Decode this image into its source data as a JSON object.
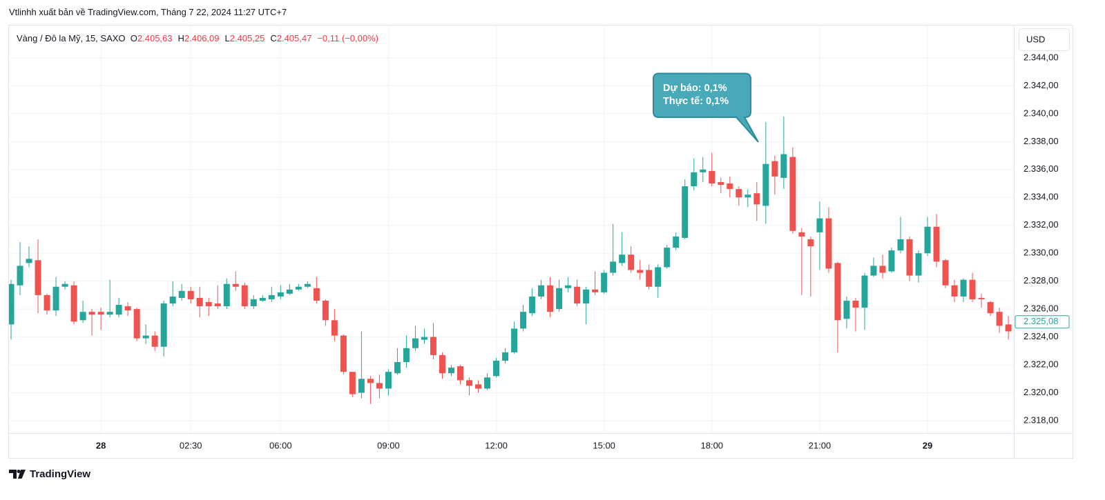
{
  "header": {
    "publisher": "Vtlinhh xuất bản về TradingView.com, Tháng 7 22, 2024 11:27 UTC+7",
    "symbol": "Vàng / Đô la Mỹ, 15, SAXO",
    "ohlc": [
      {
        "key": "O",
        "value": "2.405,63"
      },
      {
        "key": "H",
        "value": "2.406,09"
      },
      {
        "key": "L",
        "value": "2.405,25"
      },
      {
        "key": "C",
        "value": "2.405,47"
      }
    ],
    "change": "−0,11 (−0,00%)"
  },
  "currency": "USD",
  "brand": "TradingView",
  "chart_data": {
    "type": "candlestick",
    "categories": [
      null,
      null,
      null,
      null,
      null,
      null,
      null,
      null,
      null,
      null,
      "28",
      null,
      null,
      null,
      null,
      null,
      null,
      null,
      null,
      null,
      "02:30",
      null,
      null,
      null,
      null,
      null,
      null,
      null,
      null,
      null,
      "06:00",
      null,
      null,
      null,
      null,
      null,
      null,
      null,
      null,
      null,
      null,
      null,
      "09:00",
      null,
      null,
      null,
      null,
      null,
      null,
      null,
      null,
      null,
      null,
      null,
      "12:00",
      null,
      null,
      null,
      null,
      null,
      null,
      null,
      null,
      null,
      null,
      null,
      "15:00",
      null,
      null,
      null,
      null,
      null,
      null,
      null,
      null,
      null,
      null,
      null,
      "18:00",
      null,
      null,
      null,
      null,
      null,
      null,
      null,
      null,
      null,
      null,
      null,
      "21:00",
      null,
      null,
      null,
      null,
      null,
      null,
      null,
      null,
      null,
      null,
      null,
      "29",
      null,
      null,
      null,
      null,
      null,
      null,
      null,
      null,
      null
    ],
    "open": [
      2324.9,
      2327.7,
      2329.3,
      2329.5,
      2327.0,
      2325.9,
      2327.6,
      2327.7,
      2325.2,
      2325.8,
      2325.8,
      2325.6,
      2325.6,
      2326.2,
      2326.0,
      2323.9,
      2324.1,
      2323.3,
      2326.4,
      2326.8,
      2327.3,
      2326.8,
      2326.5,
      2326.4,
      2326.2,
      2327.8,
      2327.7,
      2326.2,
      2326.6,
      2326.7,
      2326.9,
      2327.1,
      2327.4,
      2327.6,
      2327.5,
      2326.6,
      2325.2,
      2324.1,
      2321.5,
      2320.0,
      2321.0,
      2320.7,
      2320.3,
      2321.4,
      2322.2,
      2323.2,
      2323.8,
      2324.0,
      2322.7,
      2321.4,
      2321.9,
      2320.9,
      2320.6,
      2320.3,
      2321.2,
      2322.3,
      2322.9,
      2324.6,
      2325.7,
      2326.9,
      2327.7,
      2326.0,
      2327.5,
      2327.6,
      2326.4,
      2327.4,
      2327.2,
      2328.6,
      2329.3,
      2329.9,
      2328.8,
      2328.8,
      2327.6,
      2329.0,
      2330.4,
      2331.1,
      2334.8,
      2335.8,
      2335.9,
      2335.1,
      2335.0,
      2334.6,
      2334.0,
      2334.3,
      2333.4,
      2336.6,
      2335.4,
      2336.9,
      2331.5,
      2331.0,
      2331.5,
      2332.5,
      2329.3,
      2325.3,
      2326.6,
      2326.1,
      2328.4,
      2329.1,
      2328.7,
      2330.2,
      2331.0,
      2328.4,
      2330.0,
      2331.9,
      2329.5,
      2327.7,
      2326.9,
      2328.1,
      2326.8,
      2326.5,
      2325.8,
      2324.9
    ],
    "high": [
      2328.1,
      2330.8,
      2330.5,
      2331.0,
      2327.1,
      2328.3,
      2328.0,
      2328.0,
      2326.6,
      2326.0,
      2326.1,
      2328.1,
      2326.8,
      2326.5,
      2326.1,
      2324.9,
      2324.4,
      2326.6,
      2328.0,
      2327.8,
      2327.6,
      2327.6,
      2326.8,
      2327.7,
      2328.2,
      2328.7,
      2327.9,
      2327.0,
      2327.0,
      2327.6,
      2327.7,
      2327.8,
      2327.8,
      2328.0,
      2328.3,
      2326.7,
      2326.0,
      2324.2,
      2321.5,
      2324.4,
      2321.2,
      2321.3,
      2321.7,
      2323.2,
      2324.1,
      2324.8,
      2324.6,
      2325.0,
      2322.9,
      2322.0,
      2322.0,
      2321.1,
      2320.9,
      2321.4,
      2322.5,
      2323.2,
      2325.1,
      2326.3,
      2327.5,
      2328.1,
      2328.3,
      2328.1,
      2328.3,
      2328.1,
      2327.6,
      2328.7,
      2328.8,
      2332.1,
      2331.5,
      2330.5,
      2329.5,
      2329.2,
      2329.2,
      2330.6,
      2331.5,
      2335.3,
      2336.8,
      2336.9,
      2337.2,
      2335.4,
      2335.5,
      2334.8,
      2334.6,
      2335.1,
      2339.4,
      2337.0,
      2339.8,
      2337.6,
      2331.8,
      2331.2,
      2333.7,
      2333.3,
      2329.4,
      2326.9,
      2326.8,
      2328.6,
      2329.7,
      2329.9,
      2330.4,
      2332.6,
      2331.2,
      2330.2,
      2332.6,
      2332.8,
      2329.6,
      2328.1,
      2328.2,
      2328.6,
      2327.1,
      2326.6,
      2326.1,
      2325.5
    ],
    "low": [
      2323.8,
      2327.0,
      2329.0,
      2325.7,
      2325.6,
      2325.5,
      2327.4,
      2324.9,
      2325.0,
      2324.1,
      2324.5,
      2325.4,
      2325.4,
      2325.5,
      2323.7,
      2323.5,
      2323.0,
      2322.6,
      2326.2,
      2326.6,
      2326.4,
      2325.4,
      2325.5,
      2326.0,
      2326.0,
      2327.3,
      2326.0,
      2326.0,
      2326.5,
      2326.5,
      2326.7,
      2327.0,
      2327.3,
      2327.5,
      2326.4,
      2324.8,
      2323.7,
      2321.3,
      2319.7,
      2319.6,
      2319.2,
      2319.6,
      2319.8,
      2321.3,
      2321.8,
      2323.0,
      2323.5,
      2322.4,
      2321.0,
      2321.2,
      2320.6,
      2319.8,
      2320.0,
      2320.2,
      2321.1,
      2322.1,
      2322.8,
      2324.4,
      2325.5,
      2326.7,
      2325.4,
      2325.8,
      2327.2,
      2326.2,
      2324.9,
      2327.0,
      2327.1,
      2328.4,
      2329.1,
      2328.6,
      2328.1,
      2327.4,
      2326.8,
      2328.9,
      2330.2,
      2331.0,
      2334.5,
      2335.1,
      2334.8,
      2334.3,
      2334.0,
      2333.4,
      2333.3,
      2332.3,
      2332.1,
      2334.2,
      2334.6,
      2331.4,
      2327.0,
      2326.9,
      2328.8,
      2328.6,
      2322.9,
      2324.6,
      2324.4,
      2324.5,
      2328.3,
      2328.2,
      2328.6,
      2330.0,
      2328.0,
      2327.9,
      2329.8,
      2329.0,
      2327.5,
      2326.5,
      2326.5,
      2326.5,
      2326.1,
      2325.5,
      2324.3,
      2323.8
    ],
    "close": [
      2327.8,
      2329.1,
      2329.6,
      2327.0,
      2325.9,
      2327.6,
      2327.8,
      2325.1,
      2325.8,
      2325.6,
      2325.6,
      2325.8,
      2326.3,
      2325.9,
      2323.9,
      2324.1,
      2323.3,
      2326.4,
      2326.9,
      2327.3,
      2326.7,
      2326.2,
      2326.2,
      2326.2,
      2327.8,
      2327.6,
      2326.2,
      2326.7,
      2326.8,
      2327.0,
      2327.2,
      2327.4,
      2327.6,
      2327.8,
      2326.6,
      2325.2,
      2324.1,
      2321.5,
      2319.9,
      2321.0,
      2320.7,
      2320.3,
      2321.5,
      2322.2,
      2323.2,
      2323.9,
      2324.0,
      2322.7,
      2321.4,
      2321.8,
      2320.9,
      2320.5,
      2320.3,
      2321.1,
      2322.3,
      2322.9,
      2324.6,
      2325.8,
      2326.9,
      2327.7,
      2325.8,
      2327.5,
      2327.7,
      2326.4,
      2327.4,
      2327.2,
      2328.6,
      2329.4,
      2329.9,
      2328.8,
      2328.6,
      2327.6,
      2329.0,
      2330.4,
      2331.2,
      2334.8,
      2335.8,
      2336.0,
      2335.0,
      2334.9,
      2334.6,
      2334.0,
      2334.2,
      2333.5,
      2336.4,
      2335.5,
      2337.1,
      2331.6,
      2331.2,
      2330.5,
      2332.5,
      2328.9,
      2325.2,
      2326.6,
      2326.1,
      2328.4,
      2329.1,
      2328.6,
      2330.2,
      2331.0,
      2328.4,
      2330.0,
      2331.9,
      2329.4,
      2327.7,
      2326.9,
      2328.1,
      2326.7,
      2326.7,
      2325.7,
      2324.8,
      2324.4
    ],
    "up_color": "#26a69a",
    "down_color": "#ef5350",
    "ylim": [
      2317.11,
      2346.32
    ],
    "yticks": [
      {
        "value": 2318,
        "label": "2.318,00"
      },
      {
        "value": 2320,
        "label": "2.320,00"
      },
      {
        "value": 2322,
        "label": "2.322,00"
      },
      {
        "value": 2324,
        "label": "2.324,00"
      },
      {
        "value": 2326,
        "label": "2.326,00"
      },
      {
        "value": 2328,
        "label": "2.328,00"
      },
      {
        "value": 2330,
        "label": "2.330,00"
      },
      {
        "value": 2332,
        "label": "2.332,00"
      },
      {
        "value": 2334,
        "label": "2.334,00"
      },
      {
        "value": 2336,
        "label": "2.336,00"
      },
      {
        "value": 2338,
        "label": "2.338,00"
      },
      {
        "value": 2340,
        "label": "2.340,00"
      },
      {
        "value": 2342,
        "label": "2.342,00"
      },
      {
        "value": 2344,
        "label": "2.344,00"
      }
    ],
    "grid": true,
    "last_price": {
      "value": 2325.08,
      "label": "2.325,08"
    },
    "annotation": [
      "Dự báo: 0,1%",
      "Thực tế: 0,1%"
    ]
  }
}
